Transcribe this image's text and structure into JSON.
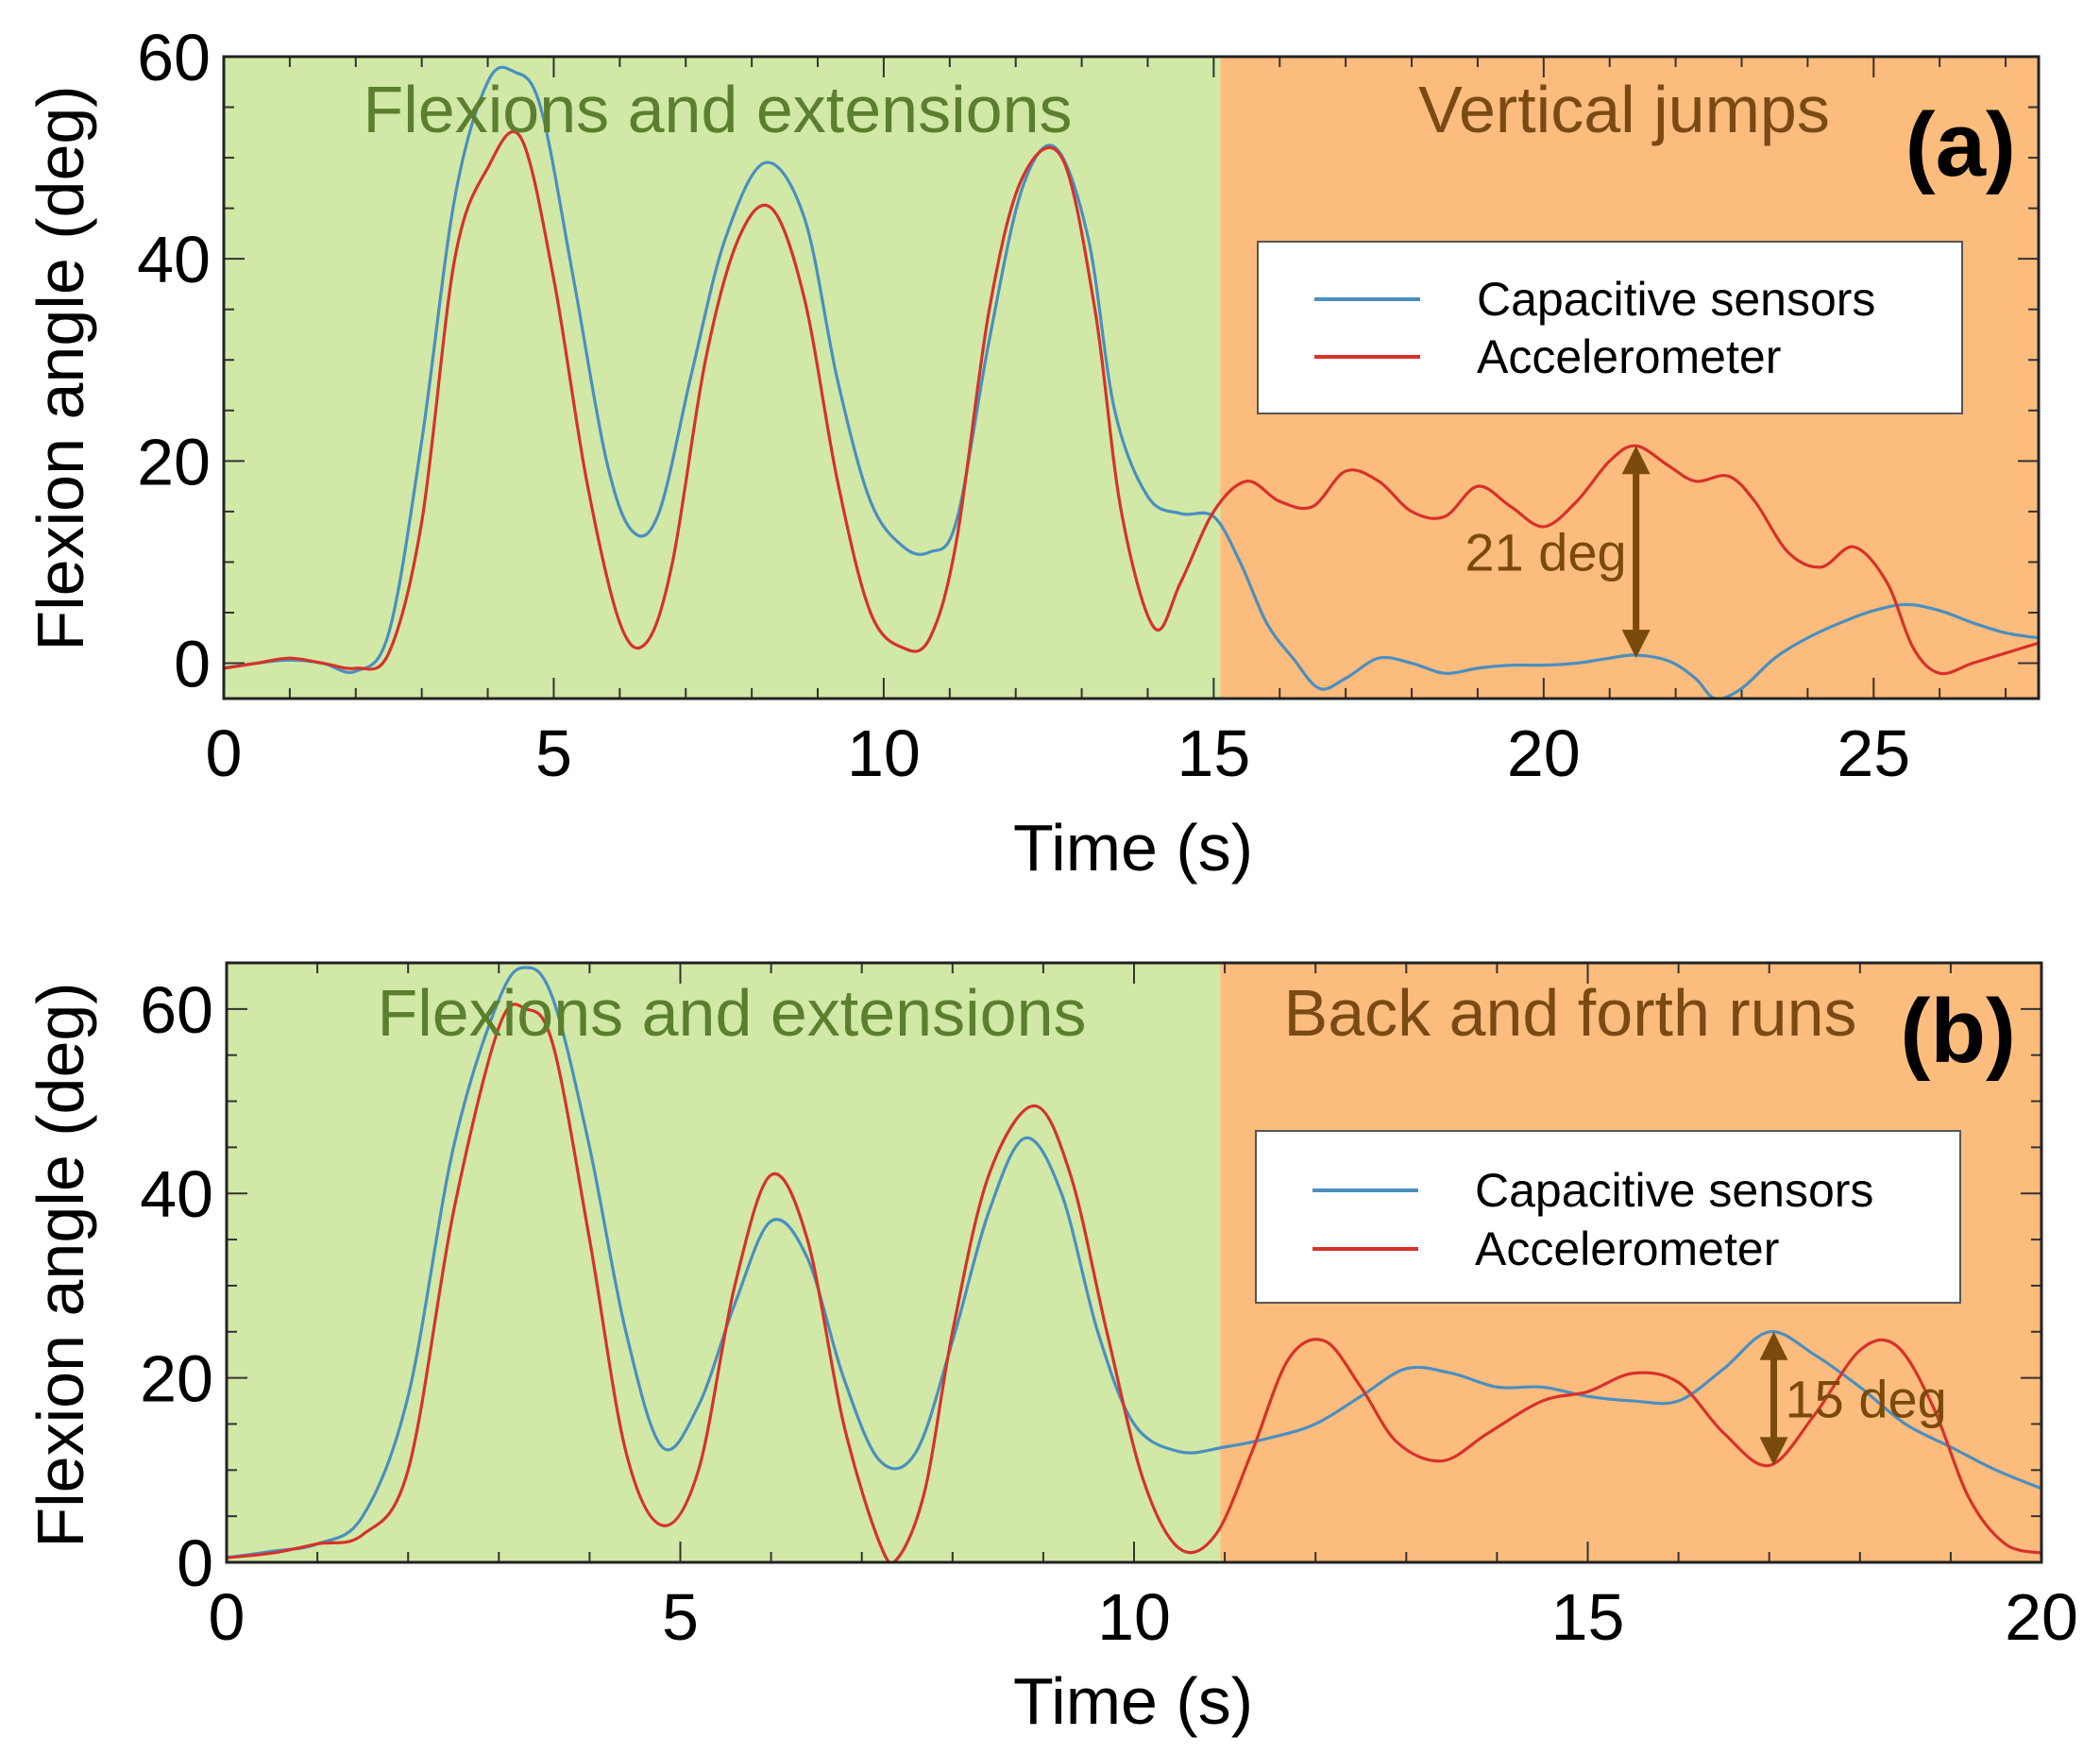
{
  "colors": {
    "region_a": "#d1e8a6",
    "region_b": "#fcbc7d",
    "label_a": "#5b7f2f",
    "label_b": "#7a4a14",
    "capacitive": "#4a8fc0",
    "accelerometer": "#d6322a",
    "arrow": "#7a4a0c"
  },
  "chart_data": [
    {
      "type": "line",
      "panel": "(a)",
      "xlabel": "Time (s)",
      "ylabel": "Flexion angle (deg)",
      "xlim": [
        0,
        27.5
      ],
      "ylim": [
        -3.5,
        60
      ],
      "xticks": [
        0,
        5,
        10,
        15,
        20,
        25
      ],
      "yticks": [
        0,
        20,
        40,
        60
      ],
      "regions": [
        {
          "label": "Flexions and extensions",
          "x0": 0,
          "x1": 15.1,
          "color_key": "region_a",
          "text_key": "label_a"
        },
        {
          "label": "Vertical jumps",
          "x0": 15.1,
          "x1": 27.5,
          "color_key": "region_b",
          "text_key": "label_b"
        }
      ],
      "legend": {
        "position": "right",
        "entries": [
          "Capacitive sensors",
          "Accelerometer"
        ]
      },
      "annotation": {
        "text": "21 deg",
        "x": 21.4,
        "y_from": 0.5,
        "y_to": 21.5
      },
      "series": [
        {
          "name": "Capacitive sensors",
          "color_key": "capacitive",
          "x": [
            0,
            0.5,
            1,
            1.5,
            2,
            2.5,
            3,
            3.5,
            4,
            4.4,
            4.8,
            5.3,
            5.8,
            6.2,
            6.6,
            7.1,
            7.6,
            8.2,
            8.8,
            9.3,
            9.8,
            10.3,
            10.7,
            11.1,
            11.6,
            12.1,
            12.6,
            13.1,
            13.5,
            14.0,
            14.5,
            15.0,
            15.4,
            15.8,
            16.2,
            16.6,
            17.0,
            17.5,
            18.0,
            18.5,
            19.0,
            19.5,
            20.0,
            20.5,
            21.0,
            21.4,
            21.9,
            22.3,
            22.6,
            23.0,
            23.5,
            24.0,
            24.5,
            25.0,
            25.5,
            26.0,
            26.5,
            27.0,
            27.5
          ],
          "y": [
            -0.5,
            0.0,
            0.3,
            0.0,
            -0.8,
            3.0,
            22.0,
            46.0,
            57.5,
            58.5,
            55.0,
            38.0,
            20.0,
            13.0,
            15.0,
            29.0,
            42.0,
            49.5,
            44.0,
            28.0,
            16.0,
            11.5,
            11.0,
            14.0,
            32.0,
            47.0,
            51.0,
            42.0,
            25.0,
            16.5,
            14.8,
            14.5,
            10.0,
            4.0,
            0.5,
            -2.5,
            -1.5,
            0.5,
            0.0,
            -1.0,
            -0.5,
            -0.2,
            -0.2,
            0.0,
            0.5,
            0.8,
            0.2,
            -1.5,
            -3.5,
            -2.5,
            0.5,
            2.5,
            4.0,
            5.2,
            5.8,
            5.2,
            4.0,
            3.0,
            2.5
          ]
        },
        {
          "name": "Accelerometer",
          "color_key": "accelerometer",
          "x": [
            0,
            0.5,
            1,
            1.5,
            2,
            2.5,
            3,
            3.5,
            4,
            4.5,
            5,
            5.5,
            6,
            6.4,
            6.8,
            7.3,
            7.8,
            8.3,
            8.8,
            9.3,
            9.8,
            10.3,
            10.7,
            11.1,
            11.6,
            12.1,
            12.7,
            13.2,
            13.6,
            14.1,
            14.5,
            15.0,
            15.5,
            16.0,
            16.5,
            17.0,
            17.5,
            18.0,
            18.5,
            19.0,
            19.5,
            20.0,
            20.5,
            21.0,
            21.4,
            21.9,
            22.3,
            22.8,
            23.2,
            23.7,
            24.2,
            24.7,
            25.2,
            25.6,
            26.0,
            26.5,
            27.0,
            27.5
          ],
          "y": [
            -0.5,
            0.0,
            0.5,
            0.0,
            -0.5,
            1.0,
            14.0,
            40.0,
            49.0,
            52.0,
            38.0,
            18.0,
            4.0,
            2.0,
            10.0,
            30.0,
            42.0,
            45.0,
            36.0,
            18.0,
            5.0,
            1.5,
            2.5,
            12.0,
            35.0,
            48.0,
            50.0,
            35.0,
            15.0,
            3.5,
            8.0,
            15.0,
            18.0,
            16.0,
            15.5,
            19.0,
            18.0,
            15.0,
            14.5,
            17.5,
            15.5,
            13.5,
            16.0,
            20.0,
            21.5,
            19.5,
            18.0,
            18.5,
            16.0,
            11.0,
            9.5,
            11.5,
            8.0,
            1.5,
            -1.0,
            0.0,
            1.0,
            2.0
          ]
        }
      ]
    },
    {
      "type": "line",
      "panel": "(b)",
      "xlabel": "Time (s)",
      "ylabel": "Flexion angle (deg)",
      "xlim": [
        0,
        20
      ],
      "ylim": [
        0,
        65
      ],
      "xticks": [
        0,
        5,
        10,
        15,
        20
      ],
      "yticks": [
        0,
        20,
        40,
        60
      ],
      "regions": [
        {
          "label": "Flexions and extensions",
          "x0": 0,
          "x1": 10.95,
          "color_key": "region_a",
          "text_key": "label_a"
        },
        {
          "label": "Back and forth runs",
          "x0": 10.95,
          "x1": 20,
          "color_key": "region_b",
          "text_key": "label_b"
        }
      ],
      "legend": {
        "position": "right",
        "entries": [
          "Capacitive sensors",
          "Accelerometer"
        ]
      },
      "annotation": {
        "text": "15 deg",
        "x": 17.05,
        "y_from": 10.5,
        "y_to": 25.0
      },
      "series": [
        {
          "name": "Capacitive sensors",
          "color_key": "capacitive",
          "x": [
            0,
            0.5,
            1.0,
            1.5,
            2.0,
            2.5,
            3.0,
            3.3,
            3.6,
            4.0,
            4.4,
            4.8,
            5.2,
            5.6,
            6.0,
            6.4,
            6.8,
            7.2,
            7.6,
            8.0,
            8.4,
            8.8,
            9.2,
            9.6,
            10.0,
            10.5,
            11.0,
            11.5,
            12.0,
            12.5,
            13.0,
            13.5,
            14.0,
            14.5,
            15.0,
            15.5,
            16.0,
            16.5,
            17.0,
            17.5,
            18.0,
            18.5,
            19.0,
            19.5,
            20.0
          ],
          "y": [
            0.5,
            1.2,
            2.0,
            5.0,
            18.0,
            45.0,
            61.0,
            64.5,
            61.0,
            45.0,
            25.0,
            12.5,
            17.0,
            28.0,
            37.0,
            33.0,
            20.0,
            11.0,
            12.0,
            24.0,
            38.0,
            46.0,
            40.0,
            25.0,
            15.0,
            12.0,
            12.5,
            13.5,
            15.0,
            18.0,
            21.0,
            20.5,
            19.0,
            19.0,
            18.0,
            17.5,
            17.5,
            21.0,
            25.0,
            22.5,
            19.0,
            15.0,
            12.5,
            10.0,
            8.0
          ]
        },
        {
          "name": "Accelerometer",
          "color_key": "accelerometer",
          "x": [
            0,
            0.5,
            1.0,
            1.5,
            2.0,
            2.5,
            3.0,
            3.3,
            3.6,
            4.0,
            4.4,
            4.8,
            5.2,
            5.6,
            6.0,
            6.4,
            6.8,
            7.2,
            7.4,
            7.7,
            8.0,
            8.4,
            8.9,
            9.3,
            9.7,
            10.1,
            10.5,
            10.9,
            11.3,
            11.7,
            12.1,
            12.5,
            12.9,
            13.4,
            13.9,
            14.5,
            15.0,
            15.5,
            16.0,
            16.5,
            17.0,
            17.5,
            18.0,
            18.4,
            18.8,
            19.2,
            19.6,
            20.0
          ],
          "y": [
            0.5,
            1.0,
            2.0,
            3.0,
            10.0,
            38.0,
            58.0,
            60.0,
            56.0,
            35.0,
            12.0,
            4.0,
            10.0,
            30.0,
            42.0,
            35.0,
            15.0,
            2.0,
            0.5,
            8.0,
            25.0,
            42.0,
            49.5,
            42.0,
            25.0,
            9.0,
            1.5,
            3.0,
            12.0,
            22.0,
            24.0,
            19.0,
            13.0,
            11.0,
            14.0,
            17.5,
            18.5,
            20.5,
            19.5,
            14.0,
            10.5,
            16.0,
            23.0,
            23.5,
            17.0,
            7.0,
            2.0,
            1.0
          ]
        }
      ]
    }
  ]
}
